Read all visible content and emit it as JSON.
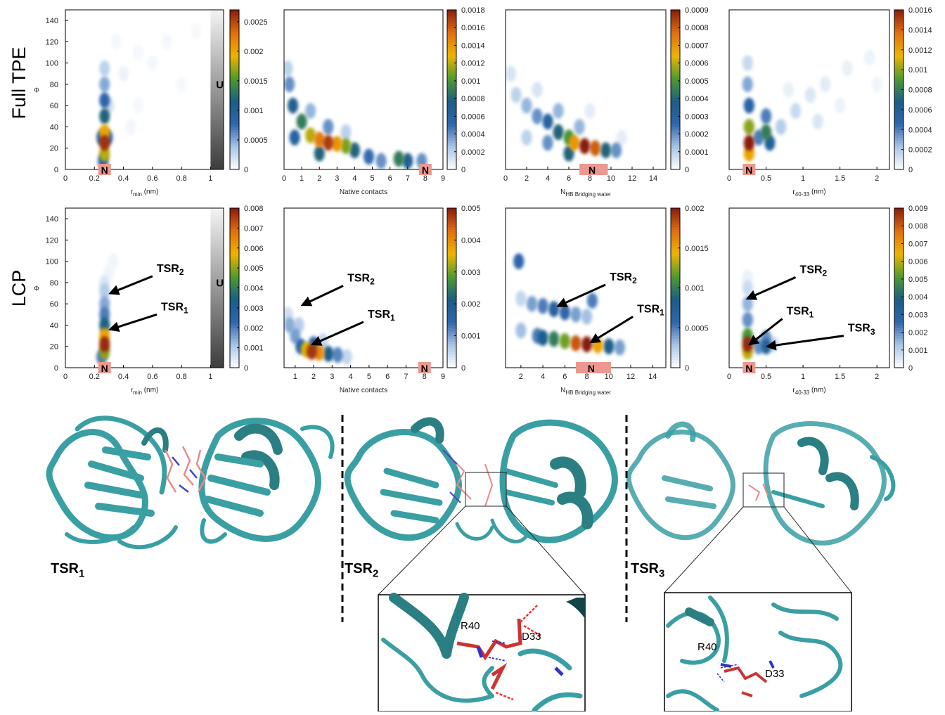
{
  "row_labels": [
    "Full TPE",
    "LCP"
  ],
  "colormap": [
    "#ffffff",
    "#a9c6e6",
    "#2f66ad",
    "#1b5d86",
    "#4e9b2e",
    "#f0b400",
    "#e2700e",
    "#8a1d0c"
  ],
  "chart_data": [
    {
      "type": "heatmap",
      "xlabel": [
        {
          "text": "r"
        },
        {
          "text": "min",
          "sub": true
        },
        {
          "text": " (nm)"
        }
      ],
      "ylabel": "Φ",
      "xlim": [
        0,
        1.09
      ],
      "xticks": [
        0,
        0.2,
        0.4,
        0.6,
        0.8,
        1
      ],
      "ylim": [
        0,
        150
      ],
      "yticks": [
        0,
        20,
        40,
        60,
        80,
        100,
        120,
        140
      ],
      "clim": [
        0,
        0.0027
      ],
      "cticks": [
        0,
        0.0005,
        0.001,
        0.0015,
        0.002,
        0.0025
      ],
      "points": [
        [
          0.27,
          25,
          0.0026
        ],
        [
          0.27,
          35,
          0.002
        ],
        [
          0.27,
          15,
          0.0018
        ],
        [
          0.27,
          50,
          0.0012
        ],
        [
          0.27,
          65,
          0.0008
        ],
        [
          0.27,
          80,
          0.0005
        ],
        [
          0.27,
          95,
          0.0003
        ],
        [
          0.25,
          30,
          0.0008
        ],
        [
          0.29,
          30,
          0.0008
        ],
        [
          0.26,
          8,
          0.0008
        ],
        [
          0.3,
          60,
          0.0002
        ],
        [
          0.4,
          90,
          8e-05
        ],
        [
          0.5,
          110,
          5e-05
        ],
        [
          0.6,
          100,
          5e-05
        ],
        [
          0.7,
          120,
          5e-05
        ],
        [
          0.5,
          60,
          5e-05
        ],
        [
          0.8,
          80,
          5e-05
        ],
        [
          0.9,
          130,
          4e-05
        ],
        [
          0.35,
          120,
          5e-05
        ],
        [
          0.45,
          40,
          6e-05
        ]
      ],
      "native": {
        "text": "N",
        "x": 0.27
      },
      "unfolded": {
        "text": "U",
        "x": 1
      }
    },
    {
      "type": "heatmap",
      "xlabel": [
        {
          "text": "Native contacts"
        }
      ],
      "xlim": [
        0,
        9
      ],
      "xticks": [
        0,
        1,
        2,
        3,
        4,
        5,
        6,
        7,
        8,
        9
      ],
      "ylim": [
        0,
        150
      ],
      "clim": [
        0,
        0.0018
      ],
      "cticks": [
        0,
        0.0002,
        0.0004,
        0.0006,
        0.0008,
        0.001,
        0.0012,
        0.0014,
        0.0016,
        0.0018
      ],
      "points": [
        [
          2.5,
          25,
          0.0017
        ],
        [
          2,
          28,
          0.0015
        ],
        [
          3,
          24,
          0.0014
        ],
        [
          3.5,
          22,
          0.0011
        ],
        [
          1.5,
          32,
          0.0012
        ],
        [
          4,
          18,
          0.0008
        ],
        [
          1,
          45,
          0.0009
        ],
        [
          0.5,
          60,
          0.0007
        ],
        [
          0.3,
          80,
          0.0004
        ],
        [
          0.2,
          95,
          0.0002
        ],
        [
          4.8,
          12,
          0.0005
        ],
        [
          5.5,
          8,
          0.0004
        ],
        [
          6.5,
          10,
          0.0009
        ],
        [
          7,
          8,
          0.0007
        ],
        [
          7.8,
          8,
          0.0004
        ],
        [
          2.5,
          40,
          0.0004
        ],
        [
          1.5,
          55,
          0.0003
        ],
        [
          3.5,
          35,
          0.0002
        ],
        [
          0.6,
          30,
          0.0006
        ],
        [
          2,
          15,
          0.0008
        ]
      ],
      "native": {
        "text": "N",
        "x": 8
      }
    },
    {
      "type": "heatmap",
      "xlabel": [
        {
          "text": "N"
        },
        {
          "text": "HB Bridging water",
          "sub": true
        }
      ],
      "xlim": [
        0,
        15.2
      ],
      "xticks": [
        0,
        2,
        4,
        6,
        8,
        10,
        12,
        14
      ],
      "ylim": [
        0,
        150
      ],
      "clim": [
        0,
        0.0009
      ],
      "cticks": [
        0,
        0.0001,
        0.0002,
        0.0003,
        0.0004,
        0.0005,
        0.0006,
        0.0007,
        0.0008,
        0.0009
      ],
      "points": [
        [
          7.5,
          22,
          0.0009
        ],
        [
          8.5,
          20,
          0.0008
        ],
        [
          6.5,
          25,
          0.0007
        ],
        [
          6,
          30,
          0.0005
        ],
        [
          5,
          35,
          0.0004
        ],
        [
          4,
          45,
          0.0003
        ],
        [
          3,
          50,
          0.0002
        ],
        [
          2,
          60,
          0.00015
        ],
        [
          1,
          70,
          0.0001
        ],
        [
          0.5,
          90,
          6e-05
        ],
        [
          9.5,
          18,
          0.0004
        ],
        [
          10.5,
          18,
          0.0002
        ],
        [
          4,
          25,
          0.0002
        ],
        [
          5,
          55,
          0.00015
        ],
        [
          7,
          40,
          0.00015
        ],
        [
          3,
          75,
          6e-05
        ],
        [
          8,
          55,
          4e-05
        ],
        [
          11,
          30,
          4e-05
        ],
        [
          2,
          30,
          0.0001
        ],
        [
          6,
          15,
          0.0004
        ]
      ],
      "native": {
        "text": "N",
        "x": 8.2,
        "xspan": [
          7,
          9.7
        ]
      }
    },
    {
      "type": "heatmap",
      "xlabel": [
        {
          "text": "r"
        },
        {
          "text": "40-33",
          "sub": true
        },
        {
          "text": " (nm)"
        }
      ],
      "xlim": [
        0,
        2.17
      ],
      "xticks": [
        0,
        0.5,
        1,
        1.5,
        2
      ],
      "ylim": [
        0,
        150
      ],
      "clim": [
        0,
        0.0016
      ],
      "cticks": [
        0,
        0.0002,
        0.0004,
        0.0006,
        0.0008,
        0.001,
        0.0012,
        0.0014,
        0.0016
      ],
      "points": [
        [
          0.27,
          25,
          0.0016
        ],
        [
          0.27,
          40,
          0.001
        ],
        [
          0.27,
          15,
          0.0012
        ],
        [
          0.27,
          60,
          0.0005
        ],
        [
          0.25,
          80,
          0.0003
        ],
        [
          0.25,
          100,
          0.00015
        ],
        [
          0.5,
          35,
          0.0008
        ],
        [
          0.55,
          25,
          0.0006
        ],
        [
          0.5,
          50,
          0.0004
        ],
        [
          0.4,
          30,
          0.0004
        ],
        [
          0.7,
          40,
          0.0002
        ],
        [
          0.9,
          55,
          0.00015
        ],
        [
          1.1,
          70,
          0.0001
        ],
        [
          1.3,
          80,
          8e-05
        ],
        [
          1.6,
          95,
          6e-05
        ],
        [
          1.9,
          105,
          5e-05
        ],
        [
          1.2,
          45,
          0.0001
        ],
        [
          0.8,
          75,
          6e-05
        ],
        [
          1.5,
          60,
          5e-05
        ],
        [
          2,
          80,
          4e-05
        ]
      ],
      "native": {
        "text": "N",
        "x": 0.27
      }
    },
    {
      "type": "heatmap",
      "xlabel": [
        {
          "text": "r"
        },
        {
          "text": "min",
          "sub": true
        },
        {
          "text": " (nm)"
        }
      ],
      "ylabel": "Φ",
      "xlim": [
        0,
        1.09
      ],
      "xticks": [
        0,
        0.2,
        0.4,
        0.6,
        0.8,
        1
      ],
      "ylim": [
        0,
        150
      ],
      "yticks": [
        0,
        20,
        40,
        60,
        80,
        100,
        120,
        140
      ],
      "clim": [
        0,
        0.008
      ],
      "cticks": [
        0,
        0.001,
        0.002,
        0.003,
        0.004,
        0.005,
        0.006,
        0.007,
        0.008
      ],
      "points": [
        [
          0.27,
          22,
          0.0078
        ],
        [
          0.27,
          30,
          0.006
        ],
        [
          0.27,
          15,
          0.005
        ],
        [
          0.27,
          40,
          0.0035
        ],
        [
          0.27,
          50,
          0.002
        ],
        [
          0.27,
          60,
          0.0015
        ],
        [
          0.27,
          72,
          0.001
        ],
        [
          0.27,
          80,
          0.0005
        ],
        [
          0.3,
          90,
          0.0002
        ],
        [
          0.33,
          100,
          0.0002
        ],
        [
          0.25,
          10,
          0.002
        ]
      ],
      "native": {
        "text": "N",
        "x": 0.27
      },
      "unfolded": {
        "text": "U",
        "x": 1
      },
      "annotations": [
        {
          "label": [
            {
              "text": "TSR"
            },
            {
              "text": "2",
              "sub": true
            }
          ],
          "xy": [
            0.31,
            70
          ],
          "xytext": [
            0.6,
            86
          ]
        },
        {
          "label": [
            {
              "text": "TSR"
            },
            {
              "text": "1",
              "sub": true
            }
          ],
          "xy": [
            0.31,
            36
          ],
          "xytext": [
            0.63,
            50
          ]
        }
      ]
    },
    {
      "type": "heatmap",
      "xlabel": [
        {
          "text": "Native contacts"
        }
      ],
      "xlim": [
        0.4,
        9
      ],
      "xticks": [
        1,
        2,
        3,
        4,
        5,
        6,
        7,
        8,
        9
      ],
      "ylim": [
        0,
        150
      ],
      "clim": [
        0,
        0.005
      ],
      "cticks": [
        0,
        0.001,
        0.002,
        0.003,
        0.004,
        0.005
      ],
      "points": [
        [
          1.9,
          15,
          0.0048
        ],
        [
          2.3,
          14,
          0.004
        ],
        [
          1.6,
          17,
          0.0035
        ],
        [
          2.8,
          13,
          0.002
        ],
        [
          3.3,
          12,
          0.0012
        ],
        [
          1.3,
          20,
          0.0015
        ],
        [
          2,
          22,
          0.0015
        ],
        [
          1,
          30,
          0.001
        ],
        [
          0.7,
          40,
          0.0009
        ],
        [
          1.2,
          40,
          0.0006
        ],
        [
          0.6,
          50,
          0.0004
        ],
        [
          3.8,
          10,
          0.0005
        ],
        [
          2.5,
          25,
          0.0005
        ]
      ],
      "native": {
        "text": "N",
        "x": 8
      },
      "annotations": [
        {
          "label": [
            {
              "text": "TSR"
            },
            {
              "text": "2",
              "sub": true
            }
          ],
          "xy": [
            1.4,
            59
          ],
          "xytext": [
            3.6,
            77
          ]
        },
        {
          "label": [
            {
              "text": "TSR"
            },
            {
              "text": "1",
              "sub": true
            }
          ],
          "xy": [
            1.95,
            22
          ],
          "xytext": [
            4.7,
            43
          ]
        }
      ]
    },
    {
      "type": "heatmap",
      "xlabel": [
        {
          "text": "N"
        },
        {
          "text": "HB Bridging water",
          "sub": true
        }
      ],
      "xlim": [
        0.6,
        15.2
      ],
      "xticks": [
        2,
        4,
        6,
        8,
        10,
        12,
        14
      ],
      "ylim": [
        0,
        150
      ],
      "clim": [
        0,
        0.002
      ],
      "cticks": [
        0,
        0.0005,
        0.001,
        0.0015,
        0.002
      ],
      "points": [
        [
          8,
          22,
          0.002
        ],
        [
          7,
          23,
          0.0018
        ],
        [
          9,
          21,
          0.0015
        ],
        [
          6,
          25,
          0.0012
        ],
        [
          5,
          27,
          0.001
        ],
        [
          4,
          28,
          0.0008
        ],
        [
          10,
          20,
          0.0008
        ],
        [
          3.5,
          30,
          0.0005
        ],
        [
          11,
          19,
          0.0004
        ],
        [
          5,
          55,
          0.0007
        ],
        [
          6,
          52,
          0.0006
        ],
        [
          4,
          58,
          0.0005
        ],
        [
          3,
          60,
          0.0004
        ],
        [
          7,
          50,
          0.0004
        ],
        [
          8,
          48,
          0.0003
        ],
        [
          2,
          65,
          0.0002
        ],
        [
          1.8,
          100,
          0.0006
        ],
        [
          8.5,
          63,
          0.0005
        ],
        [
          2,
          35,
          0.0003
        ]
      ],
      "native": {
        "text": "N",
        "x": 8.4,
        "xspan": [
          7,
          10.2
        ]
      },
      "annotations": [
        {
          "label": [
            {
              "text": "TSR"
            },
            {
              "text": "2",
              "sub": true
            }
          ],
          "xy": [
            5.4,
            58
          ],
          "xytext": [
            9.7,
            78
          ]
        },
        {
          "label": [
            {
              "text": "TSR"
            },
            {
              "text": "1",
              "sub": true
            }
          ],
          "xy": [
            8.4,
            24
          ],
          "xytext": [
            12.2,
            48
          ]
        }
      ]
    },
    {
      "type": "heatmap",
      "xlabel": [
        {
          "text": "r"
        },
        {
          "text": "40-33",
          "sub": true
        },
        {
          "text": " (nm)"
        }
      ],
      "xlim": [
        0,
        2.17
      ],
      "xticks": [
        0,
        0.5,
        1,
        1.5,
        2
      ],
      "ylim": [
        0,
        150
      ],
      "clim": [
        0,
        0.009
      ],
      "cticks": [
        0,
        0.001,
        0.002,
        0.003,
        0.004,
        0.005,
        0.006,
        0.007,
        0.008,
        0.009
      ],
      "points": [
        [
          0.25,
          22,
          0.0088
        ],
        [
          0.25,
          30,
          0.005
        ],
        [
          0.25,
          15,
          0.006
        ],
        [
          0.25,
          45,
          0.002
        ],
        [
          0.25,
          60,
          0.0015
        ],
        [
          0.25,
          75,
          0.0008
        ],
        [
          0.5,
          20,
          0.003
        ],
        [
          0.5,
          28,
          0.002
        ],
        [
          0.4,
          20,
          0.002
        ],
        [
          0.6,
          22,
          0.0008
        ],
        [
          0.25,
          85,
          0.0003
        ]
      ],
      "native": {
        "text": "N",
        "x": 0.27
      },
      "annotations": [
        {
          "label": [
            {
              "text": "TSR"
            },
            {
              "text": "2",
              "sub": true
            }
          ],
          "xy": [
            0.25,
            65
          ],
          "xytext": [
            0.9,
            85
          ]
        },
        {
          "label": [
            {
              "text": "TSR"
            },
            {
              "text": "1",
              "sub": true
            }
          ],
          "xy": [
            0.28,
            22
          ],
          "xytext": [
            0.72,
            46
          ]
        },
        {
          "label": [
            {
              "text": "TSR"
            },
            {
              "text": "3",
              "sub": true
            }
          ],
          "xy": [
            0.52,
            20
          ],
          "xytext": [
            1.55,
            30
          ]
        }
      ]
    }
  ],
  "structures": [
    {
      "label": [
        {
          "text": "TSR"
        },
        {
          "text": "1",
          "sub": true
        }
      ]
    },
    {
      "label": [
        {
          "text": "TSR"
        },
        {
          "text": "2",
          "sub": true
        }
      ],
      "inset": [
        "R40",
        "D33"
      ]
    },
    {
      "label": [
        {
          "text": "TSR"
        },
        {
          "text": "3",
          "sub": true
        }
      ],
      "inset": [
        "R40",
        "D33"
      ]
    }
  ]
}
